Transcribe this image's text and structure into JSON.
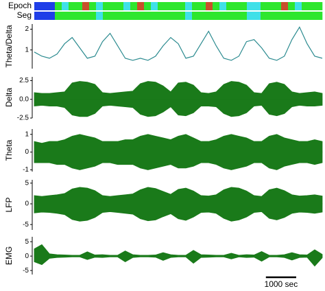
{
  "time": {
    "x": [
      0,
      250,
      500,
      750,
      1000,
      1250,
      1500,
      1750,
      2000,
      2250,
      2500,
      2750,
      3000,
      3250,
      3500,
      3750,
      4000,
      4250,
      4500,
      4750,
      5000,
      5250,
      5500,
      5750,
      6000,
      6250,
      6500,
      6750,
      7000,
      7250,
      7500,
      7750,
      8000,
      8250,
      8500,
      8750,
      9000,
      9250,
      9500
    ],
    "xlim": [
      0,
      9500
    ],
    "scale_bar": {
      "value": 1000,
      "label": "1000 sec"
    }
  },
  "chart_data": [
    {
      "type": "raster",
      "rows": [
        {
          "label": "Epoch",
          "bins": [
            "#1f3ee8",
            "#1f3ee8",
            "#1f3ee8",
            "#2ee62e",
            "#3fe0e8",
            "#2ee62e",
            "#2ee62e",
            "#c8502a",
            "#2ee62e",
            "#3fe0e8",
            "#2ee62e",
            "#2ee62e",
            "#2ee62e",
            "#3fe0e8",
            "#2ee62e",
            "#c8502a",
            "#2ee62e",
            "#3fe0e8",
            "#2ee62e",
            "#2ee62e",
            "#2ee62e",
            "#2ee62e",
            "#3fe0e8",
            "#2ee62e",
            "#2ee62e",
            "#c8502a",
            "#2ee62e",
            "#3fe0e8",
            "#2ee62e",
            "#2ee62e",
            "#2ee62e",
            "#3fe0e8",
            "#3fe0e8",
            "#2ee62e",
            "#2ee62e",
            "#2ee62e",
            "#c8502a",
            "#2ee62e",
            "#3fe0e8",
            "#2ee62e",
            "#2ee62e",
            "#2ee62e"
          ]
        },
        {
          "label": "Seg",
          "bins": [
            "#1f3ee8",
            "#1f3ee8",
            "#1f3ee8",
            "#2ee62e",
            "#2ee62e",
            "#2ee62e",
            "#2ee62e",
            "#2ee62e",
            "#2ee62e",
            "#3fe0e8",
            "#2ee62e",
            "#2ee62e",
            "#2ee62e",
            "#2ee62e",
            "#2ee62e",
            "#2ee62e",
            "#2ee62e",
            "#2ee62e",
            "#2ee62e",
            "#2ee62e",
            "#2ee62e",
            "#2ee62e",
            "#3fe0e8",
            "#2ee62e",
            "#2ee62e",
            "#2ee62e",
            "#2ee62e",
            "#2ee62e",
            "#2ee62e",
            "#2ee62e",
            "#2ee62e",
            "#3fe0e8",
            "#3fe0e8",
            "#2ee62e",
            "#2ee62e",
            "#2ee62e",
            "#2ee62e",
            "#2ee62e",
            "#2ee62e",
            "#2ee62e",
            "#2ee62e",
            "#2ee62e"
          ]
        }
      ]
    },
    {
      "type": "line",
      "ylabel": "Theta/Delta",
      "color": "#2a8a8f",
      "ylim": [
        0.1,
        2.25
      ],
      "yticks": [
        1,
        2
      ],
      "values": [
        0.9,
        0.7,
        0.6,
        0.8,
        1.3,
        1.6,
        1.1,
        0.6,
        0.7,
        1.4,
        1.8,
        1.2,
        0.6,
        0.5,
        0.6,
        0.5,
        0.7,
        1.2,
        1.6,
        1.3,
        0.6,
        0.7,
        1.3,
        1.9,
        1.2,
        0.6,
        0.5,
        0.7,
        1.4,
        1.5,
        1.1,
        0.6,
        0.5,
        0.7,
        1.5,
        2.1,
        1.3,
        0.7,
        0.6
      ]
    },
    {
      "type": "envelope",
      "ylabel": "Delta",
      "color": "#1a7a1a",
      "ylim": [
        -2.5,
        3.0
      ],
      "yticks": [
        -2.5,
        {
          "value": 0,
          "label": "0.0"
        },
        2.5
      ],
      "upper": [
        0.9,
        0.8,
        0.8,
        0.9,
        1.0,
        2.2,
        2.4,
        2.3,
        2.0,
        0.9,
        0.8,
        0.9,
        1.0,
        1.1,
        2.1,
        2.4,
        2.3,
        1.8,
        1.0,
        2.2,
        2.3,
        1.9,
        0.9,
        0.8,
        1.0,
        2.0,
        2.4,
        2.3,
        1.9,
        0.9,
        0.8,
        2.1,
        2.3,
        2.0,
        1.0,
        0.8,
        0.9,
        1.0,
        0.8
      ],
      "lower": [
        -0.9,
        -0.8,
        -0.9,
        -0.9,
        -1.1,
        -2.1,
        -2.3,
        -2.3,
        -1.9,
        -0.9,
        -0.8,
        -0.9,
        -1.0,
        -1.1,
        -2.0,
        -2.3,
        -2.2,
        -1.7,
        -1.0,
        -2.1,
        -2.2,
        -1.8,
        -0.9,
        -0.9,
        -1.0,
        -1.9,
        -2.3,
        -2.2,
        -1.8,
        -0.9,
        -0.8,
        -2.0,
        -2.2,
        -1.9,
        -1.0,
        -0.8,
        -0.9,
        -0.9,
        -0.8
      ]
    },
    {
      "type": "envelope",
      "ylabel": "Theta",
      "color": "#1a7a1a",
      "ylim": [
        -1.1,
        1.3
      ],
      "yticks": [
        -1,
        0,
        1
      ],
      "upper": [
        0.6,
        0.5,
        0.6,
        0.6,
        0.7,
        0.9,
        1.0,
        0.9,
        0.8,
        0.6,
        0.6,
        0.6,
        0.7,
        0.7,
        0.9,
        1.0,
        0.9,
        0.8,
        0.7,
        0.9,
        1.0,
        0.8,
        0.6,
        0.6,
        0.7,
        0.9,
        1.0,
        0.9,
        0.8,
        0.6,
        0.6,
        0.9,
        1.0,
        0.8,
        0.7,
        0.6,
        0.6,
        0.7,
        0.6
      ],
      "lower": [
        -0.6,
        -0.6,
        -0.6,
        -0.7,
        -0.7,
        -0.9,
        -1.0,
        -0.9,
        -0.8,
        -0.6,
        -0.6,
        -0.7,
        -0.7,
        -0.7,
        -0.9,
        -1.0,
        -0.9,
        -0.8,
        -0.7,
        -0.9,
        -0.9,
        -0.8,
        -0.6,
        -0.6,
        -0.7,
        -0.9,
        -1.0,
        -0.9,
        -0.8,
        -0.6,
        -0.6,
        -0.9,
        -1.0,
        -0.8,
        -0.7,
        -0.6,
        -0.6,
        -0.7,
        -0.6
      ]
    },
    {
      "type": "envelope",
      "ylabel": "LFP",
      "color": "#1a7a1a",
      "ylim": [
        -6.3,
        5.8
      ],
      "yticks": [
        -5,
        0,
        5
      ],
      "upper": [
        2.0,
        1.8,
        2.0,
        2.2,
        2.5,
        3.6,
        4.0,
        3.8,
        3.2,
        2.0,
        1.8,
        2.0,
        2.2,
        2.4,
        3.4,
        4.0,
        3.7,
        3.0,
        2.3,
        3.5,
        3.8,
        3.1,
        2.0,
        1.9,
        2.2,
        3.4,
        4.0,
        3.8,
        3.1,
        2.0,
        1.8,
        3.4,
        3.8,
        3.2,
        2.2,
        1.9,
        2.0,
        2.2,
        1.9
      ],
      "lower": [
        -2.2,
        -2.0,
        -2.1,
        -2.3,
        -2.6,
        -3.8,
        -4.2,
        -4.0,
        -3.3,
        -2.1,
        -1.9,
        -2.1,
        -2.3,
        -2.5,
        -3.6,
        -4.1,
        -3.9,
        -3.1,
        -2.4,
        -3.6,
        -4.0,
        -3.2,
        -2.1,
        -2.0,
        -2.3,
        -3.5,
        -4.2,
        -3.9,
        -3.2,
        -2.1,
        -1.9,
        -3.5,
        -3.9,
        -3.3,
        -2.3,
        -2.0,
        -2.1,
        -2.3,
        -2.0
      ]
    },
    {
      "type": "envelope",
      "ylabel": "EMG",
      "color": "#1a7a1a",
      "ylim": [
        -6.4,
        6.7
      ],
      "yticks": [
        -5,
        0,
        5
      ],
      "upper": [
        2.5,
        4.0,
        0.8,
        0.5,
        0.4,
        0.3,
        0.3,
        1.5,
        0.4,
        0.5,
        0.3,
        0.3,
        1.8,
        0.5,
        0.3,
        0.3,
        0.4,
        1.2,
        0.5,
        0.3,
        0.3,
        2.0,
        0.5,
        0.4,
        0.3,
        0.3,
        1.0,
        0.3,
        0.5,
        0.4,
        1.6,
        0.3,
        0.3,
        0.5,
        1.2,
        0.5,
        0.4,
        2.2,
        0.6
      ],
      "lower": [
        -2.0,
        -3.0,
        -0.8,
        -0.5,
        -0.4,
        -0.3,
        -0.3,
        -1.2,
        -0.4,
        -0.5,
        -0.3,
        -0.3,
        -2.0,
        -0.5,
        -0.3,
        -0.3,
        -0.4,
        -1.5,
        -0.5,
        -0.3,
        -0.3,
        -2.5,
        -0.5,
        -0.4,
        -0.3,
        -0.3,
        -1.0,
        -0.3,
        -0.5,
        -0.4,
        -1.8,
        -0.3,
        -0.3,
        -0.5,
        -1.4,
        -0.5,
        -0.4,
        -3.5,
        -0.6
      ]
    }
  ]
}
